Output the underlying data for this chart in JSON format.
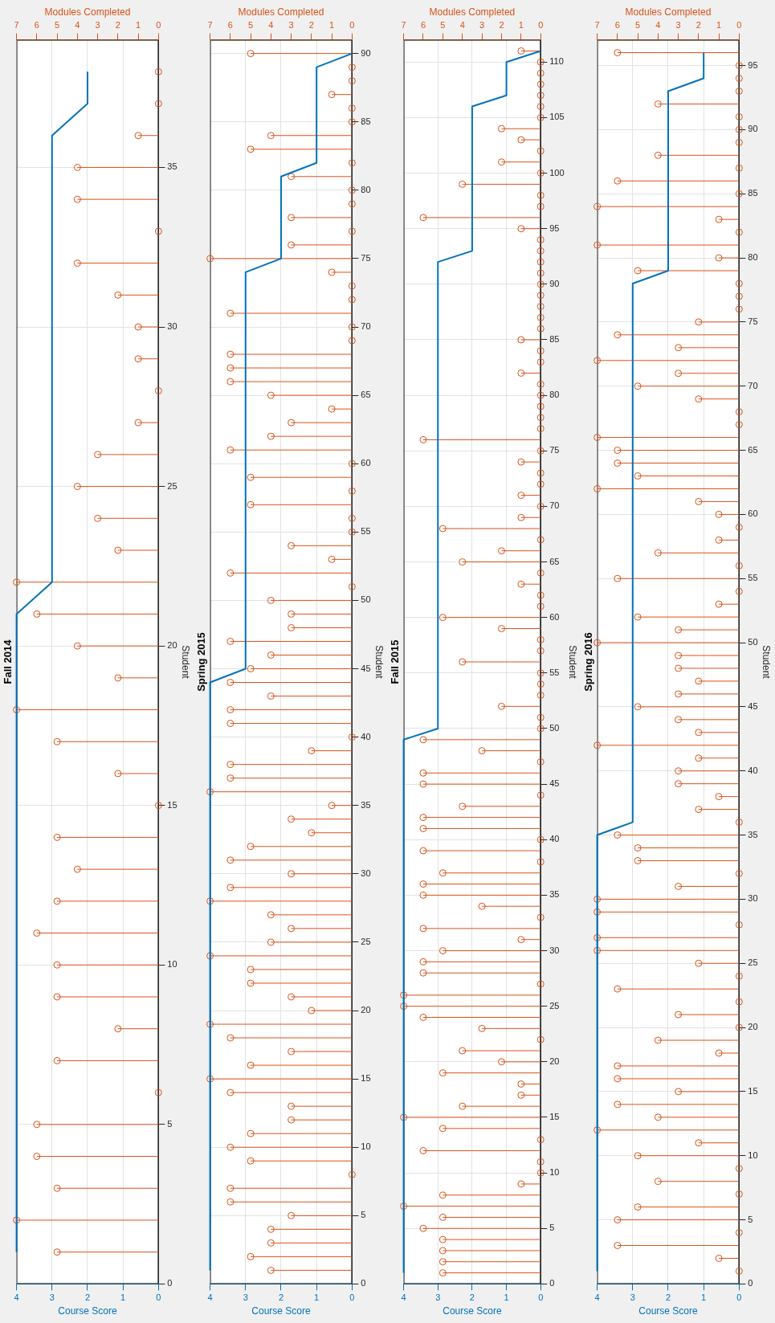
{
  "chart_data": [
    {
      "type": "line",
      "orientation": "horizontal",
      "title": "Fall 2014",
      "xlabel": "Course Score",
      "x2label": "Modules Completed",
      "ylabel": "Student",
      "grid": true,
      "xlim": [
        4,
        0
      ],
      "xticks": [
        4,
        3,
        2,
        1,
        0
      ],
      "x2lim": [
        7,
        0
      ],
      "x2ticks": [
        7,
        6,
        5,
        4,
        3,
        2,
        1,
        0
      ],
      "ylim": [
        0,
        39
      ],
      "yticks": [
        0,
        5,
        10,
        15,
        20,
        25,
        30,
        35
      ],
      "series": [
        {
          "type": "line",
          "color": "#0072bd",
          "values": [
            4,
            4,
            4,
            4,
            4,
            4,
            4,
            4,
            4,
            4,
            4,
            4,
            4,
            4,
            4,
            4,
            4,
            4,
            4,
            4,
            4,
            3,
            3,
            3,
            3,
            3,
            3,
            3,
            3,
            3,
            3,
            3,
            3,
            3,
            3,
            3,
            2,
            2
          ],
          "x": [
            1,
            2,
            3,
            4,
            5,
            6,
            7,
            8,
            9,
            10,
            11,
            12,
            13,
            14,
            15,
            16,
            17,
            18,
            19,
            20,
            21,
            22,
            23,
            24,
            25,
            26,
            27,
            28,
            29,
            30,
            31,
            32,
            33,
            34,
            35,
            36,
            37,
            38
          ]
        },
        {
          "type": "lollipop",
          "axis": "x2",
          "marker": "circle",
          "color": "#d95319",
          "values": [
            5,
            7,
            5,
            6,
            6,
            0,
            5,
            2,
            5,
            5,
            6,
            5,
            4,
            5,
            0,
            2,
            5,
            7,
            2,
            4,
            6,
            7,
            2,
            3,
            4,
            3,
            1,
            0,
            1,
            1,
            2,
            4,
            0,
            4,
            4,
            1,
            0,
            0
          ],
          "x": [
            1,
            2,
            3,
            4,
            5,
            6,
            7,
            8,
            9,
            10,
            11,
            12,
            13,
            14,
            15,
            16,
            17,
            18,
            19,
            20,
            21,
            22,
            23,
            24,
            25,
            26,
            27,
            28,
            29,
            30,
            31,
            32,
            33,
            34,
            35,
            36,
            37,
            38
          ]
        }
      ]
    },
    {
      "type": "line",
      "orientation": "horizontal",
      "title": "Spring 2015",
      "xlabel": "Course Score",
      "x2label": "Modules Completed",
      "ylabel": "Student",
      "grid": true,
      "xlim": [
        4,
        0
      ],
      "xticks": [
        4,
        3,
        2,
        1,
        0
      ],
      "x2lim": [
        7,
        0
      ],
      "x2ticks": [
        7,
        6,
        5,
        4,
        3,
        2,
        1,
        0
      ],
      "ylim": [
        0,
        91
      ],
      "yticks": [
        0,
        5,
        10,
        15,
        20,
        25,
        30,
        35,
        40,
        45,
        50,
        55,
        60,
        65,
        70,
        75,
        80,
        85,
        90
      ],
      "series": [
        {
          "type": "line",
          "color": "#0072bd",
          "values": [
            4,
            4,
            4,
            4,
            4,
            4,
            4,
            4,
            4,
            4,
            4,
            4,
            4,
            4,
            4,
            4,
            4,
            4,
            4,
            4,
            4,
            4,
            4,
            4,
            4,
            4,
            4,
            4,
            4,
            4,
            4,
            4,
            4,
            4,
            4,
            4,
            4,
            4,
            4,
            4,
            4,
            4,
            4,
            4,
            3,
            3,
            3,
            3,
            3,
            3,
            3,
            3,
            3,
            3,
            3,
            3,
            3,
            3,
            3,
            3,
            3,
            3,
            3,
            3,
            3,
            3,
            3,
            3,
            3,
            3,
            3,
            3,
            3,
            3,
            2,
            2,
            2,
            2,
            2,
            2,
            2,
            1,
            1,
            1,
            1,
            1,
            1,
            1,
            1,
            0
          ],
          "x": [
            1,
            2,
            3,
            4,
            5,
            6,
            7,
            8,
            9,
            10,
            11,
            12,
            13,
            14,
            15,
            16,
            17,
            18,
            19,
            20,
            21,
            22,
            23,
            24,
            25,
            26,
            27,
            28,
            29,
            30,
            31,
            32,
            33,
            34,
            35,
            36,
            37,
            38,
            39,
            40,
            41,
            42,
            43,
            44,
            45,
            46,
            47,
            48,
            49,
            50,
            51,
            52,
            53,
            54,
            55,
            56,
            57,
            58,
            59,
            60,
            61,
            62,
            63,
            64,
            65,
            66,
            67,
            68,
            69,
            70,
            71,
            72,
            73,
            74,
            75,
            76,
            77,
            78,
            79,
            80,
            81,
            82,
            83,
            84,
            85,
            86,
            87,
            88,
            89,
            90
          ]
        },
        {
          "type": "lollipop",
          "axis": "x2",
          "marker": "circle",
          "color": "#d95319",
          "values": [
            4,
            5,
            4,
            4,
            3,
            6,
            6,
            0,
            5,
            6,
            5,
            3,
            3,
            6,
            7,
            5,
            3,
            6,
            7,
            2,
            3,
            5,
            5,
            7,
            4,
            3,
            4,
            7,
            6,
            3,
            6,
            5,
            2,
            3,
            1,
            7,
            6,
            6,
            2,
            0,
            6,
            6,
            4,
            6,
            5,
            4,
            6,
            3,
            3,
            4,
            0,
            6,
            1,
            3,
            0,
            0,
            5,
            0,
            5,
            0,
            6,
            4,
            3,
            1,
            4,
            6,
            6,
            6,
            0,
            0,
            6,
            0,
            0,
            1,
            7,
            3,
            0,
            3,
            0,
            0,
            3,
            0,
            5,
            4,
            0,
            0,
            1,
            0,
            0,
            5
          ],
          "x": [
            1,
            2,
            3,
            4,
            5,
            6,
            7,
            8,
            9,
            10,
            11,
            12,
            13,
            14,
            15,
            16,
            17,
            18,
            19,
            20,
            21,
            22,
            23,
            24,
            25,
            26,
            27,
            28,
            29,
            30,
            31,
            32,
            33,
            34,
            35,
            36,
            37,
            38,
            39,
            40,
            41,
            42,
            43,
            44,
            45,
            46,
            47,
            48,
            49,
            50,
            51,
            52,
            53,
            54,
            55,
            56,
            57,
            58,
            59,
            60,
            61,
            62,
            63,
            64,
            65,
            66,
            67,
            68,
            69,
            70,
            71,
            72,
            73,
            74,
            75,
            76,
            77,
            78,
            79,
            80,
            81,
            82,
            83,
            84,
            85,
            86,
            87,
            88,
            89,
            90
          ]
        }
      ]
    },
    {
      "type": "line",
      "orientation": "horizontal",
      "title": "Fall 2015",
      "xlabel": "Course Score",
      "x2label": "Modules Completed",
      "ylabel": "Student",
      "grid": true,
      "xlim": [
        4,
        0
      ],
      "xticks": [
        4,
        3,
        2,
        1,
        0
      ],
      "x2lim": [
        7,
        0
      ],
      "x2ticks": [
        7,
        6,
        5,
        4,
        3,
        2,
        1,
        0
      ],
      "ylim": [
        0,
        112
      ],
      "yticks": [
        0,
        5,
        10,
        15,
        20,
        25,
        30,
        35,
        40,
        45,
        50,
        55,
        60,
        65,
        70,
        75,
        80,
        85,
        90,
        95,
        100,
        105,
        110
      ],
      "series": [
        {
          "type": "line",
          "color": "#0072bd",
          "values": [
            4,
            4,
            4,
            4,
            4,
            4,
            4,
            4,
            4,
            4,
            4,
            4,
            4,
            4,
            4,
            4,
            4,
            4,
            4,
            4,
            4,
            4,
            4,
            4,
            4,
            4,
            4,
            4,
            4,
            4,
            4,
            4,
            4,
            4,
            4,
            4,
            4,
            4,
            4,
            4,
            4,
            4,
            4,
            4,
            4,
            4,
            4,
            4,
            4,
            3,
            3,
            3,
            3,
            3,
            3,
            3,
            3,
            3,
            3,
            3,
            3,
            3,
            3,
            3,
            3,
            3,
            3,
            3,
            3,
            3,
            3,
            3,
            3,
            3,
            3,
            3,
            3,
            3,
            3,
            3,
            3,
            3,
            3,
            3,
            3,
            3,
            3,
            3,
            3,
            3,
            3,
            3,
            2,
            2,
            2,
            2,
            2,
            2,
            2,
            2,
            2,
            2,
            2,
            2,
            2,
            2,
            1,
            1,
            1,
            1,
            0
          ],
          "x": [
            1,
            2,
            3,
            4,
            5,
            6,
            7,
            8,
            9,
            10,
            11,
            12,
            13,
            14,
            15,
            16,
            17,
            18,
            19,
            20,
            21,
            22,
            23,
            24,
            25,
            26,
            27,
            28,
            29,
            30,
            31,
            32,
            33,
            34,
            35,
            36,
            37,
            38,
            39,
            40,
            41,
            42,
            43,
            44,
            45,
            46,
            47,
            48,
            49,
            50,
            51,
            52,
            53,
            54,
            55,
            56,
            57,
            58,
            59,
            60,
            61,
            62,
            63,
            64,
            65,
            66,
            67,
            68,
            69,
            70,
            71,
            72,
            73,
            74,
            75,
            76,
            77,
            78,
            79,
            80,
            81,
            82,
            83,
            84,
            85,
            86,
            87,
            88,
            89,
            90,
            91,
            92,
            93,
            94,
            95,
            96,
            97,
            98,
            99,
            100,
            101,
            102,
            103,
            104,
            105,
            106,
            107,
            108,
            109,
            110,
            111
          ]
        },
        {
          "type": "lollipop",
          "axis": "x2",
          "marker": "circle",
          "color": "#d95319",
          "values": [
            5,
            5,
            5,
            5,
            6,
            5,
            7,
            5,
            1,
            0,
            0,
            6,
            0,
            5,
            7,
            4,
            1,
            1,
            5,
            2,
            4,
            0,
            3,
            6,
            7,
            7,
            0,
            6,
            6,
            5,
            1,
            6,
            0,
            3,
            6,
            6,
            5,
            0,
            6,
            0,
            6,
            6,
            4,
            0,
            6,
            6,
            0,
            3,
            6,
            0,
            0,
            2,
            0,
            0,
            0,
            4,
            0,
            0,
            2,
            5,
            0,
            0,
            1,
            0,
            4,
            2,
            0,
            5,
            1,
            0,
            1,
            0,
            0,
            1,
            0,
            6,
            0,
            0,
            0,
            0,
            0,
            1,
            0,
            0,
            1,
            0,
            0,
            0,
            0,
            0,
            0,
            0,
            0,
            0,
            1,
            6,
            0,
            0,
            4,
            0,
            2,
            0,
            1,
            2,
            0,
            0,
            0,
            0,
            0,
            0,
            1
          ],
          "x": [
            1,
            2,
            3,
            4,
            5,
            6,
            7,
            8,
            9,
            10,
            11,
            12,
            13,
            14,
            15,
            16,
            17,
            18,
            19,
            20,
            21,
            22,
            23,
            24,
            25,
            26,
            27,
            28,
            29,
            30,
            31,
            32,
            33,
            34,
            35,
            36,
            37,
            38,
            39,
            40,
            41,
            42,
            43,
            44,
            45,
            46,
            47,
            48,
            49,
            50,
            51,
            52,
            53,
            54,
            55,
            56,
            57,
            58,
            59,
            60,
            61,
            62,
            63,
            64,
            65,
            66,
            67,
            68,
            69,
            70,
            71,
            72,
            73,
            74,
            75,
            76,
            77,
            78,
            79,
            80,
            81,
            82,
            83,
            84,
            85,
            86,
            87,
            88,
            89,
            90,
            91,
            92,
            93,
            94,
            95,
            96,
            97,
            98,
            99,
            100,
            101,
            102,
            103,
            104,
            105,
            106,
            107,
            108,
            109,
            110,
            111
          ]
        }
      ]
    },
    {
      "type": "line",
      "orientation": "horizontal",
      "title": "Spring 2016",
      "xlabel": "Course Score",
      "x2label": "Modules Completed",
      "ylabel": "Student",
      "grid": true,
      "xlim": [
        4,
        0
      ],
      "xticks": [
        4,
        3,
        2,
        1,
        0
      ],
      "x2lim": [
        7,
        0
      ],
      "x2ticks": [
        7,
        6,
        5,
        4,
        3,
        2,
        1,
        0
      ],
      "ylim": [
        0,
        97
      ],
      "yticks": [
        0,
        5,
        10,
        15,
        20,
        25,
        30,
        35,
        40,
        45,
        50,
        55,
        60,
        65,
        70,
        75,
        80,
        85,
        90,
        95
      ],
      "series": [
        {
          "type": "line",
          "color": "#0072bd",
          "values": [
            4,
            4,
            4,
            4,
            4,
            4,
            4,
            4,
            4,
            4,
            4,
            4,
            4,
            4,
            4,
            4,
            4,
            4,
            4,
            4,
            4,
            4,
            4,
            4,
            4,
            4,
            4,
            4,
            4,
            4,
            4,
            4,
            4,
            4,
            4,
            3,
            3,
            3,
            3,
            3,
            3,
            3,
            3,
            3,
            3,
            3,
            3,
            3,
            3,
            3,
            3,
            3,
            3,
            3,
            3,
            3,
            3,
            3,
            3,
            3,
            3,
            3,
            3,
            3,
            3,
            3,
            3,
            3,
            3,
            3,
            3,
            3,
            3,
            3,
            3,
            3,
            3,
            3,
            2,
            2,
            2,
            2,
            2,
            2,
            2,
            2,
            2,
            2,
            2,
            2,
            2,
            2,
            2,
            1,
            1,
            1
          ],
          "x": [
            1,
            2,
            3,
            4,
            5,
            6,
            7,
            8,
            9,
            10,
            11,
            12,
            13,
            14,
            15,
            16,
            17,
            18,
            19,
            20,
            21,
            22,
            23,
            24,
            25,
            26,
            27,
            28,
            29,
            30,
            31,
            32,
            33,
            34,
            35,
            36,
            37,
            38,
            39,
            40,
            41,
            42,
            43,
            44,
            45,
            46,
            47,
            48,
            49,
            50,
            51,
            52,
            53,
            54,
            55,
            56,
            57,
            58,
            59,
            60,
            61,
            62,
            63,
            64,
            65,
            66,
            67,
            68,
            69,
            70,
            71,
            72,
            73,
            74,
            75,
            76,
            77,
            78,
            79,
            80,
            81,
            82,
            83,
            84,
            85,
            86,
            87,
            88,
            89,
            90,
            91,
            92,
            93,
            94,
            95,
            96
          ]
        },
        {
          "type": "lollipop",
          "axis": "x2",
          "marker": "circle",
          "color": "#d95319",
          "values": [
            0,
            1,
            6,
            0,
            6,
            5,
            0,
            4,
            0,
            5,
            2,
            7,
            4,
            6,
            3,
            6,
            6,
            1,
            4,
            0,
            3,
            0,
            6,
            0,
            2,
            7,
            7,
            0,
            7,
            7,
            3,
            0,
            5,
            5,
            6,
            0,
            2,
            1,
            3,
            3,
            2,
            7,
            2,
            3,
            5,
            3,
            2,
            3,
            3,
            7,
            3,
            5,
            1,
            0,
            6,
            0,
            4,
            1,
            0,
            1,
            2,
            7,
            5,
            6,
            6,
            7,
            0,
            0,
            2,
            5,
            3,
            7,
            3,
            6,
            2,
            0,
            0,
            0,
            5,
            1,
            7,
            0,
            1,
            7,
            0,
            6,
            0,
            4,
            0,
            0,
            0,
            4,
            0,
            0,
            0,
            6
          ],
          "x": [
            1,
            2,
            3,
            4,
            5,
            6,
            7,
            8,
            9,
            10,
            11,
            12,
            13,
            14,
            15,
            16,
            17,
            18,
            19,
            20,
            21,
            22,
            23,
            24,
            25,
            26,
            27,
            28,
            29,
            30,
            31,
            32,
            33,
            34,
            35,
            36,
            37,
            38,
            39,
            40,
            41,
            42,
            43,
            44,
            45,
            46,
            47,
            48,
            49,
            50,
            51,
            52,
            53,
            54,
            55,
            56,
            57,
            58,
            59,
            60,
            61,
            62,
            63,
            64,
            65,
            66,
            67,
            68,
            69,
            70,
            71,
            72,
            73,
            74,
            75,
            76,
            77,
            78,
            79,
            80,
            81,
            82,
            83,
            84,
            85,
            86,
            87,
            88,
            89,
            90,
            91,
            92,
            93,
            94,
            95,
            96
          ]
        }
      ]
    }
  ]
}
